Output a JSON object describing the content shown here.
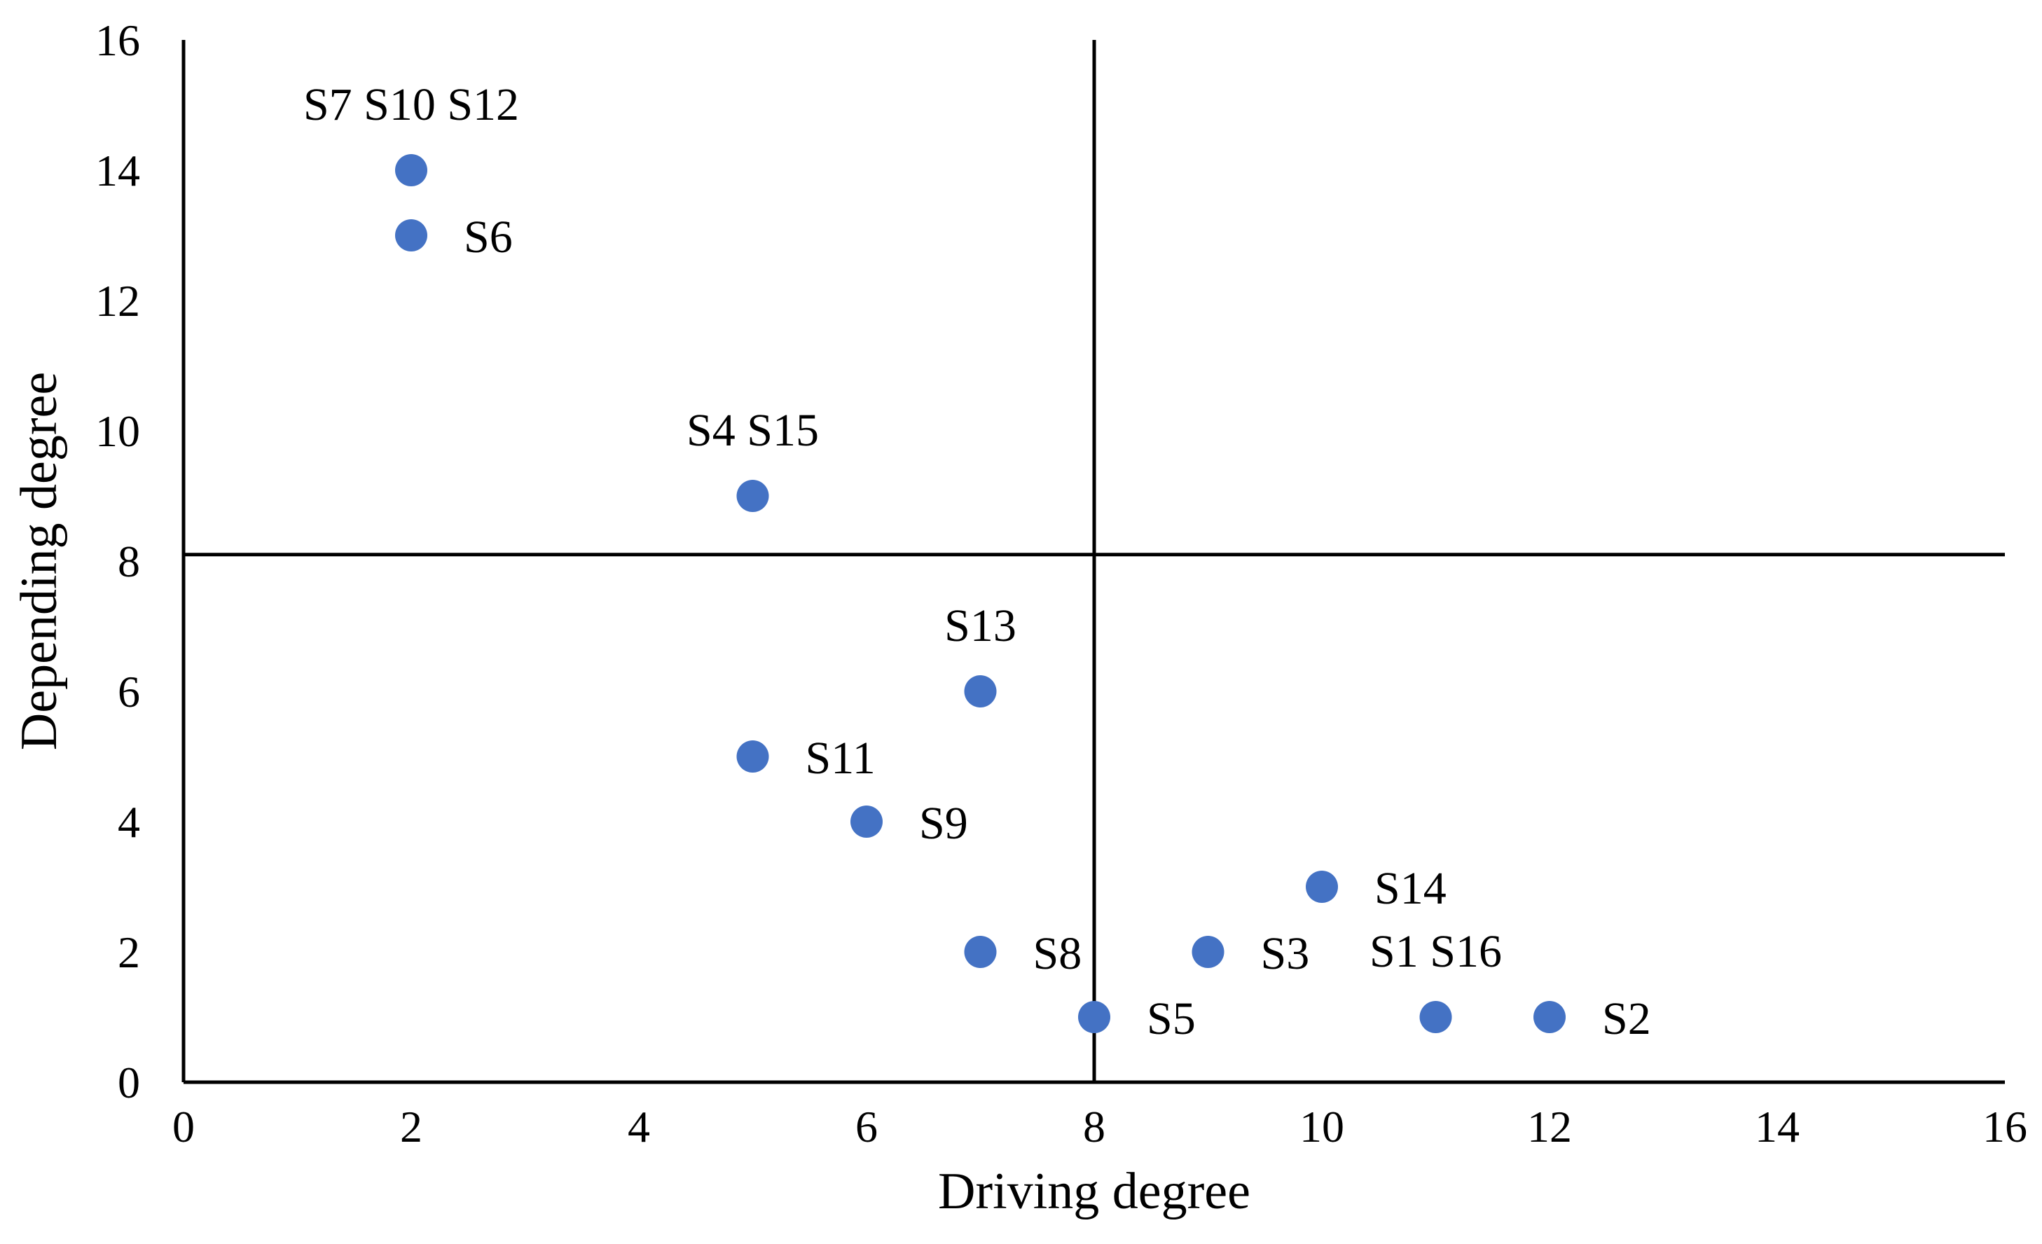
{
  "chart_data": {
    "type": "scatter",
    "title": "",
    "xlabel": "Driving degree",
    "ylabel": "Depending degree",
    "xlim": [
      0,
      16
    ],
    "ylim": [
      0,
      16
    ],
    "xticks": [
      0,
      2,
      4,
      6,
      8,
      10,
      12,
      14,
      16
    ],
    "yticks": [
      0,
      2,
      4,
      6,
      8,
      10,
      12,
      14,
      16
    ],
    "xtick_labels": [
      "0",
      "2",
      "4",
      "6",
      "8",
      "10",
      "12",
      "14",
      "16"
    ],
    "ytick_labels": [
      "0",
      "2",
      "4",
      "6",
      "8",
      "10",
      "12",
      "14",
      "16"
    ],
    "grid": false,
    "reference_lines": {
      "vertical_x": 8,
      "horizontal_y": 8.1
    },
    "point_color": "#4472C4",
    "points": [
      {
        "x": 2,
        "y": 14,
        "label": "S7 S10 S12",
        "label_position": "above"
      },
      {
        "x": 2,
        "y": 13,
        "label": "S6",
        "label_position": "right"
      },
      {
        "x": 5,
        "y": 9,
        "label": "S4 S15",
        "label_position": "above"
      },
      {
        "x": 7,
        "y": 6,
        "label": "S13",
        "label_position": "above"
      },
      {
        "x": 5,
        "y": 5,
        "label": "S11",
        "label_position": "right"
      },
      {
        "x": 6,
        "y": 4,
        "label": "S9",
        "label_position": "right"
      },
      {
        "x": 7,
        "y": 2,
        "label": "S8",
        "label_position": "right"
      },
      {
        "x": 8,
        "y": 1,
        "label": "S5",
        "label_position": "right"
      },
      {
        "x": 9,
        "y": 2,
        "label": "S3",
        "label_position": "right"
      },
      {
        "x": 10,
        "y": 3,
        "label": "S14",
        "label_position": "right"
      },
      {
        "x": 11,
        "y": 1,
        "label": "S1 S16",
        "label_position": "above"
      },
      {
        "x": 12,
        "y": 1,
        "label": "S2",
        "label_position": "right"
      }
    ]
  }
}
